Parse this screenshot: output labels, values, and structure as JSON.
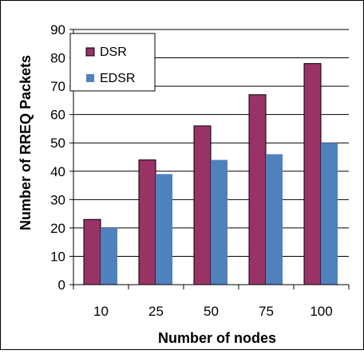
{
  "chart_data": {
    "type": "bar",
    "categories": [
      "10",
      "25",
      "50",
      "75",
      "100"
    ],
    "series": [
      {
        "name": "DSR",
        "values": [
          23,
          44,
          56,
          67,
          78
        ],
        "color": "#993366"
      },
      {
        "name": "EDSR",
        "values": [
          20,
          39,
          44,
          46,
          50
        ],
        "color": "#4F81BD"
      }
    ],
    "title": "",
    "xlabel": "Number of nodes",
    "ylabel": "Number of RREQ Packets",
    "ylim": [
      0,
      90
    ],
    "yticks": [
      0,
      10,
      20,
      30,
      40,
      50,
      60,
      70,
      80,
      90
    ],
    "grid": true,
    "legend_position": "top-left"
  }
}
